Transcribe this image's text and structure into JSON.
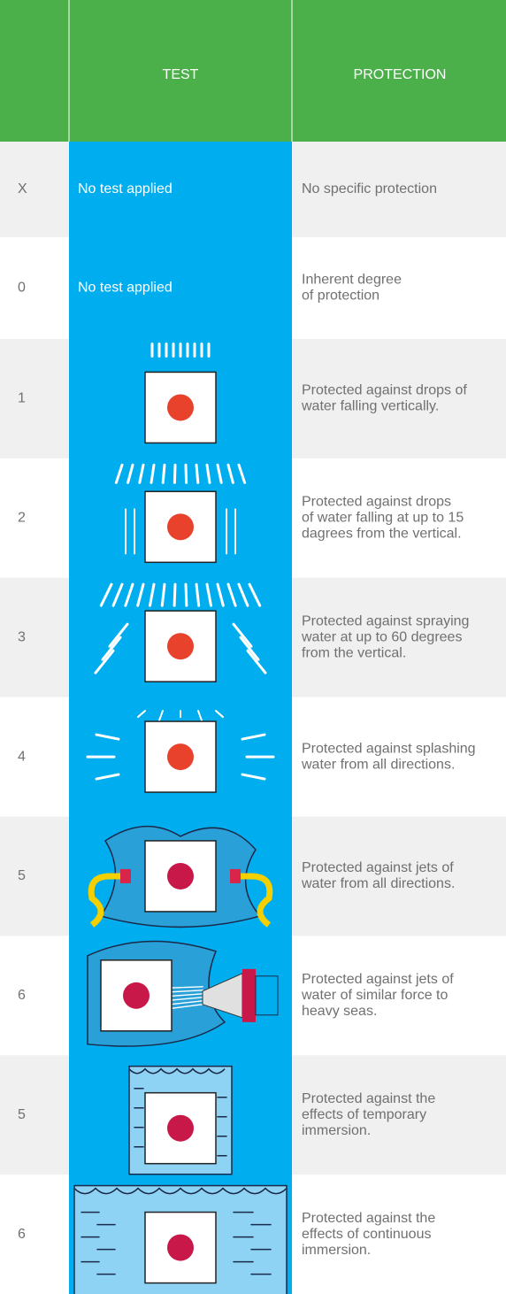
{
  "header": {
    "test": "TEST",
    "protection": "PROTECTION"
  },
  "rows": [
    {
      "code": "X",
      "test": "No test applied",
      "protection": [
        "No specific protection"
      ]
    },
    {
      "code": "0",
      "test": "No test applied",
      "protection": [
        "Inherent degree",
        "of protection"
      ]
    },
    {
      "code": "1",
      "protection": [
        "Protected against drops of",
        "water falling vertically."
      ]
    },
    {
      "code": "2",
      "protection": [
        "Protected against drops",
        "of water falling at up to 15",
        "dagrees from the vertical."
      ]
    },
    {
      "code": "3",
      "protection": [
        "Protected against spraying",
        "water at up to 60 degrees",
        "from the vertical."
      ]
    },
    {
      "code": "4",
      "protection": [
        "Protected against splashing",
        "water from all directions."
      ]
    },
    {
      "code": "5",
      "protection": [
        "Protected against jets of",
        "water from all directions."
      ]
    },
    {
      "code": "6",
      "protection": [
        "Protected against jets of",
        "water of similar force to",
        "heavy seas."
      ]
    },
    {
      "code": "5",
      "protection": [
        "Protected against the",
        "effects of temporary",
        "immersion."
      ]
    },
    {
      "code": "6",
      "protection": [
        "Protected against the",
        "effects of continuous",
        "immersion."
      ]
    }
  ]
}
